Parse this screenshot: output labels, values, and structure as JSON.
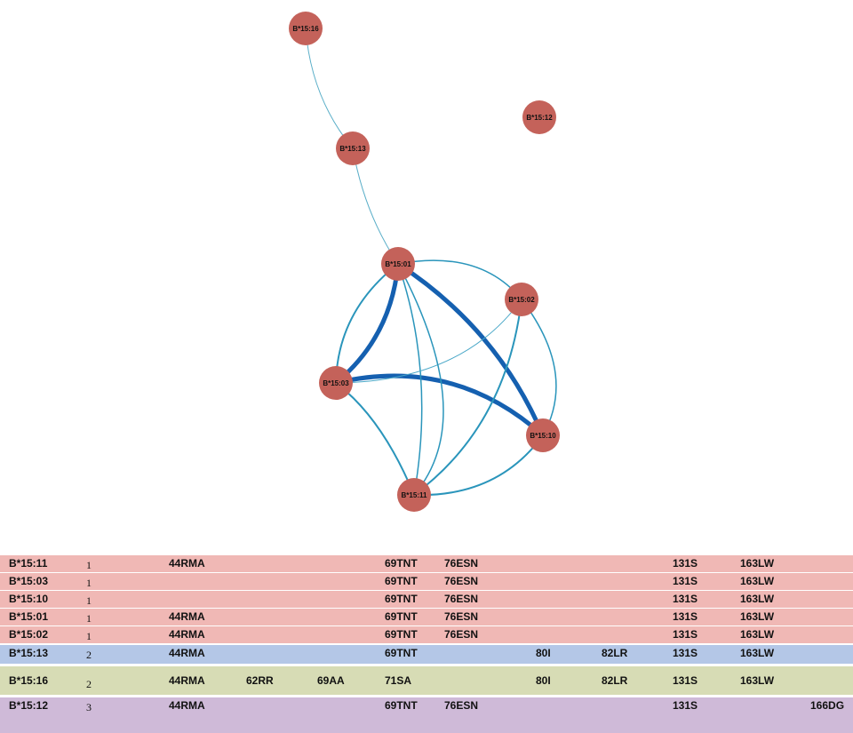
{
  "nodes": [
    {
      "label": "B*15:16"
    },
    {
      "label": "B*15:12"
    },
    {
      "label": "B*15:13"
    },
    {
      "label": "B*15:01"
    },
    {
      "label": "B*15:02"
    },
    {
      "label": "B*15:03"
    },
    {
      "label": "B*15:10"
    },
    {
      "label": "B*15:11"
    }
  ],
  "table": {
    "rows": [
      {
        "color": "#f0b8b5",
        "cells": [
          "B*15:11",
          1,
          "44RMA",
          null,
          null,
          "69TNT",
          "76ESN",
          null,
          null,
          "131S",
          "163LW",
          null
        ]
      },
      {
        "color": "#f0b8b5",
        "cells": [
          "B*15:03",
          1,
          null,
          null,
          null,
          "69TNT",
          "76ESN",
          null,
          null,
          "131S",
          "163LW",
          null
        ]
      },
      {
        "color": "#f0b8b5",
        "cells": [
          "B*15:10",
          1,
          null,
          null,
          null,
          "69TNT",
          "76ESN",
          null,
          null,
          "131S",
          "163LW",
          null
        ]
      },
      {
        "color": "#f0b8b5",
        "cells": [
          "B*15:01",
          1,
          "44RMA",
          null,
          null,
          "69TNT",
          "76ESN",
          null,
          null,
          "131S",
          "163LW",
          null
        ]
      },
      {
        "color": "#f0b8b5",
        "cells": [
          "B*15:02",
          1,
          "44RMA",
          null,
          null,
          "69TNT",
          "76ESN",
          null,
          null,
          "131S",
          "163LW",
          null
        ]
      },
      {
        "color": "#b4c7e7",
        "cells": [
          "B*15:13",
          2,
          "44RMA",
          null,
          null,
          "69TNT",
          null,
          "80I",
          "82LR",
          "131S",
          "163LW",
          null
        ]
      },
      {
        "color": "#d7dcb5",
        "cells": [
          "B*15:16",
          2,
          "44RMA",
          "62RR",
          "69AA",
          "71SA",
          null,
          "80I",
          "82LR",
          "131S",
          "163LW",
          null
        ]
      },
      {
        "color": "#cfbad8",
        "cells": [
          "B*15:12",
          3,
          "44RMA",
          null,
          null,
          "69TNT",
          "76ESN",
          null,
          null,
          "131S",
          null,
          "166DG"
        ]
      }
    ]
  }
}
